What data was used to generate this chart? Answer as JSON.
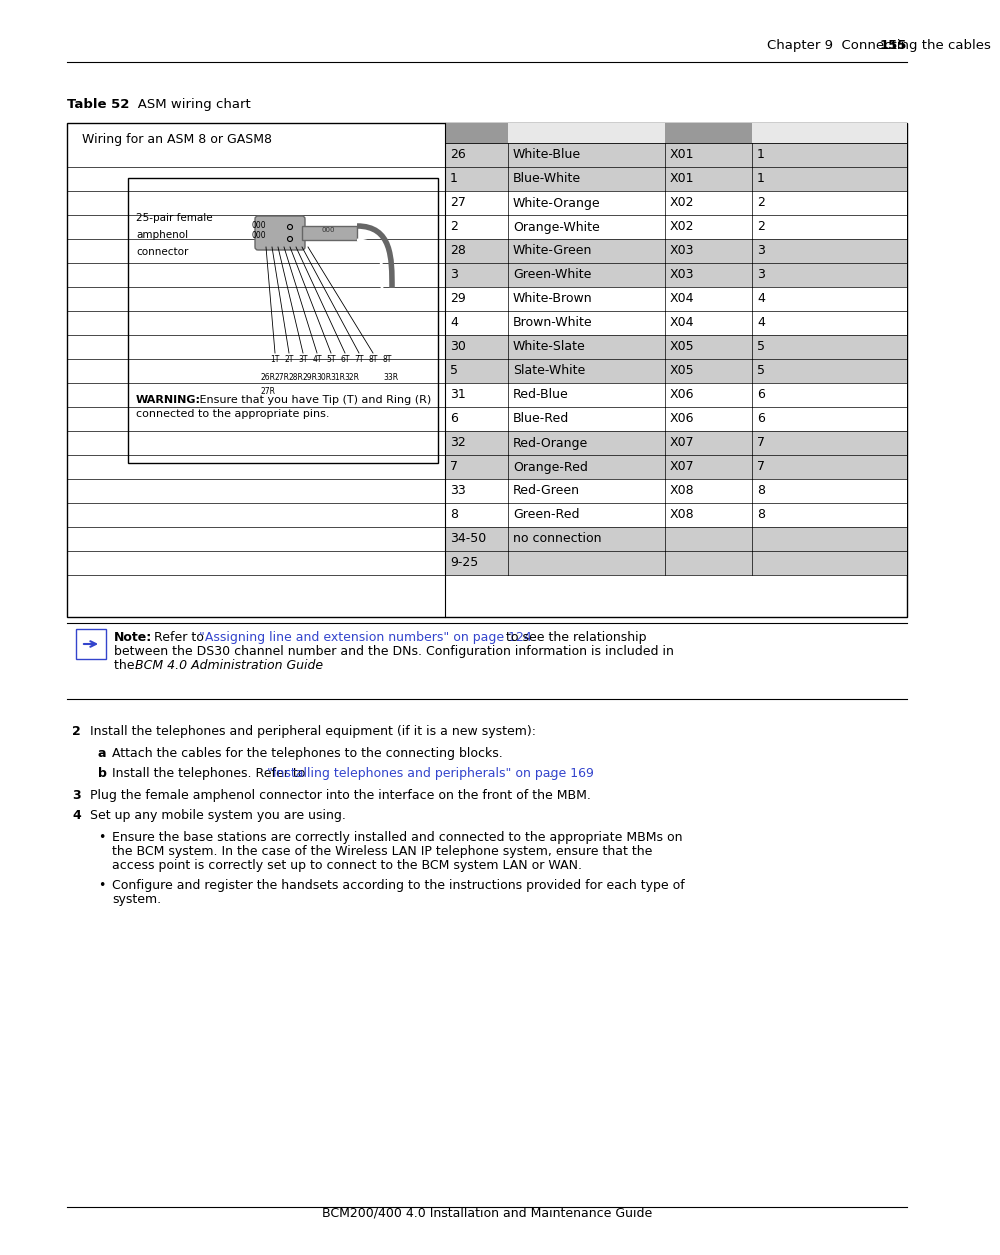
{
  "page_header_text": "Chapter 9  Connecting the cables",
  "page_header_num": "155",
  "table_title_bold": "Table 52",
  "table_title_rest": "   ASM wiring chart",
  "table_left_label": "Wiring for an ASM 8 or GASM8",
  "table_rows": [
    [
      "26",
      "White-Blue",
      "X01",
      "1"
    ],
    [
      "1",
      "Blue-White",
      "X01",
      "1"
    ],
    [
      "27",
      "White-Orange",
      "X02",
      "2"
    ],
    [
      "2",
      "Orange-White",
      "X02",
      "2"
    ],
    [
      "28",
      "White-Green",
      "X03",
      "3"
    ],
    [
      "3",
      "Green-White",
      "X03",
      "3"
    ],
    [
      "29",
      "White-Brown",
      "X04",
      "4"
    ],
    [
      "4",
      "Brown-White",
      "X04",
      "4"
    ],
    [
      "30",
      "White-Slate",
      "X05",
      "5"
    ],
    [
      "5",
      "Slate-White",
      "X05",
      "5"
    ],
    [
      "31",
      "Red-Blue",
      "X06",
      "6"
    ],
    [
      "6",
      "Blue-Red",
      "X06",
      "6"
    ],
    [
      "32",
      "Red-Orange",
      "X07",
      "7"
    ],
    [
      "7",
      "Orange-Red",
      "X07",
      "7"
    ],
    [
      "33",
      "Red-Green",
      "X08",
      "8"
    ],
    [
      "8",
      "Green-Red",
      "X08",
      "8"
    ],
    [
      "34-50",
      "no connection",
      "",
      ""
    ],
    [
      "9-25",
      "",
      "",
      ""
    ]
  ],
  "col_bg_1": "#999999",
  "col_bg_2": "#e8e8e8",
  "col_bg_3": "#999999",
  "col_bg_4": "#e8e8e8",
  "row_bg_a": "#cccccc",
  "row_bg_b": "#ffffff",
  "note_link_color": "#3344cc",
  "bg_color": "#ffffff",
  "footer_text": "BCM200/400 4.0 Installation and Maintenance Guide"
}
